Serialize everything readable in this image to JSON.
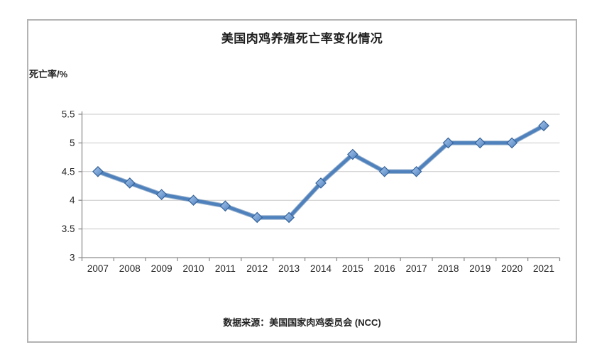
{
  "chart": {
    "title": "美国肉鸡养殖死亡率变化情况",
    "ylabel": "死亡率/%",
    "source": "数据来源：美国国家肉鸡委员会 (NCC)"
  },
  "chart_data": {
    "type": "line",
    "title": "美国肉鸡养殖死亡率变化情况",
    "xlabel": "",
    "ylabel": "死亡率/%",
    "source_note": "数据来源：美国国家肉鸡委员会 (NCC)",
    "categories": [
      "2007",
      "2008",
      "2009",
      "2010",
      "2011",
      "2012",
      "2013",
      "2014",
      "2015",
      "2016",
      "2017",
      "2018",
      "2019",
      "2020",
      "2021"
    ],
    "values": [
      4.5,
      4.3,
      4.1,
      4.0,
      3.9,
      3.7,
      3.7,
      4.3,
      4.8,
      4.5,
      4.5,
      5.0,
      5.0,
      5.0,
      5.3
    ],
    "ylim": [
      3,
      5.5
    ],
    "ytick_values": [
      3,
      3.5,
      4,
      4.5,
      5,
      5.5
    ],
    "ytick_labels": [
      "3",
      "3.5",
      "4",
      "4.5",
      "5",
      "5.5"
    ],
    "grid": "horizontal",
    "legend": "none",
    "marker": "diamond",
    "colors": {
      "line": "#4F81BD",
      "line_shadow": "#3A699E",
      "marker_fill_light": "#A9C7EA",
      "marker_fill_dark": "#4E81C2",
      "marker_border": "#35639A",
      "grid": "#C8C8C8",
      "axis": "#8E8E8E",
      "frame_border": "#B3B3B3",
      "text": "#262626"
    }
  }
}
